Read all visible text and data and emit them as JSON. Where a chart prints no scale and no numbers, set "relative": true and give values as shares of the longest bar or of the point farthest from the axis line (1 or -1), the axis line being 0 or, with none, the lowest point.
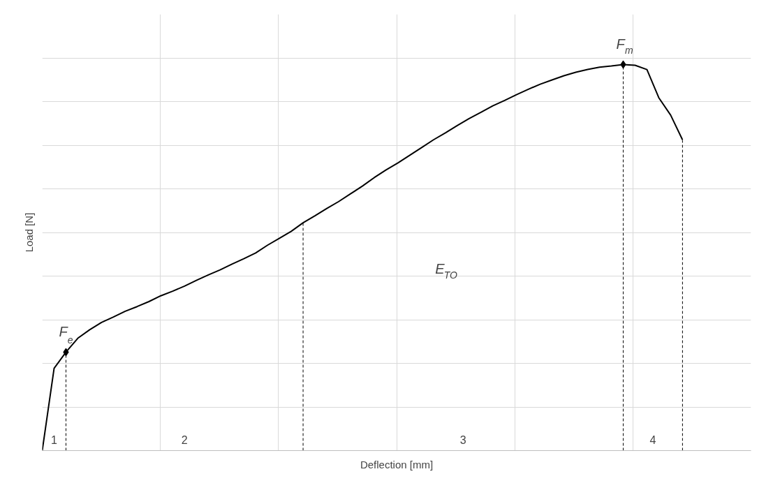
{
  "chart_data": {
    "type": "line",
    "relative": true,
    "xlabel": "Deflection [mm]",
    "ylabel": "Load [N]",
    "grid": true,
    "marker": "none",
    "line_style": "solid",
    "categories": [
      null,
      null,
      null,
      null,
      null,
      null,
      null,
      null,
      null,
      null,
      null,
      null,
      null,
      null,
      null,
      null,
      null,
      null,
      null,
      null,
      null,
      null,
      null,
      null,
      null,
      null,
      null,
      null,
      null,
      null,
      null,
      null,
      null,
      null,
      null,
      null,
      null,
      null,
      null,
      null,
      null,
      null,
      null,
      null,
      null,
      null,
      null,
      null,
      null,
      null,
      null,
      null,
      null,
      null,
      null
    ],
    "series": [
      {
        "color": "#000000",
        "values": [
          0,
          0.213,
          0.255,
          0.291,
          0.313,
          0.332,
          0.346,
          0.361,
          0.373,
          0.386,
          0.401,
          0.413,
          0.426,
          0.441,
          0.455,
          0.468,
          0.483,
          0.497,
          0.512,
          0.532,
          0.55,
          0.568,
          0.59,
          0.608,
          0.627,
          0.645,
          0.665,
          0.685,
          0.707,
          0.727,
          0.745,
          0.765,
          0.785,
          0.805,
          0.823,
          0.842,
          0.86,
          0.876,
          0.893,
          0.907,
          0.922,
          0.936,
          0.949,
          0.96,
          0.971,
          0.98,
          0.987,
          0.993,
          0.996,
          1.0,
          0.998,
          0.987,
          0.914,
          0.869,
          0.805
        ]
      }
    ],
    "annotations": [
      "E$_{TO}$",
      "1",
      "2",
      "3",
      "4",
      {
        "text": "F$_{e}$",
        "y": 0.255
      },
      {
        "text": "F$_{m}$",
        "y": 1.0
      }
    ]
  }
}
